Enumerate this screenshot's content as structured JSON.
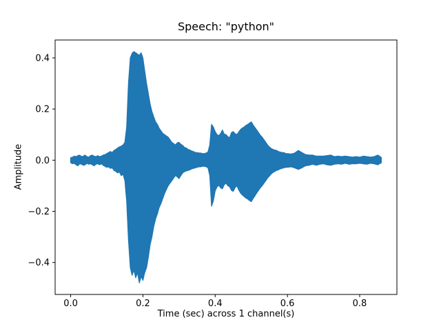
{
  "chart_data": {
    "type": "line",
    "subtype": "audio-waveform-envelope",
    "title": "Speech: \"python\"",
    "xlabel": "Time (sec) across 1 channel(s)",
    "ylabel": "Amplitude",
    "line_color": "#1f77b4",
    "xlim": [
      -0.043,
      0.903
    ],
    "ylim": [
      -0.525,
      0.47
    ],
    "xticks": [
      0.0,
      0.2,
      0.4,
      0.6,
      0.8
    ],
    "xtick_labels": [
      "0.0",
      "0.2",
      "0.4",
      "0.6",
      "0.8"
    ],
    "yticks": [
      -0.4,
      -0.2,
      0.0,
      0.2,
      0.4
    ],
    "ytick_labels": [
      "−0.4",
      "−0.2",
      "0.0",
      "0.2",
      "0.4"
    ],
    "grid": false,
    "legend": "none",
    "peak_amplitude": 0.42,
    "min_amplitude": -0.48,
    "duration_sec": 0.86,
    "envelope": [
      [
        0.0,
        -0.01,
        0.01
      ],
      [
        0.005,
        -0.014,
        0.012
      ],
      [
        0.01,
        -0.012,
        0.016
      ],
      [
        0.015,
        -0.018,
        0.014
      ],
      [
        0.02,
        -0.022,
        0.018
      ],
      [
        0.025,
        -0.014,
        0.02
      ],
      [
        0.03,
        -0.016,
        0.014
      ],
      [
        0.035,
        -0.02,
        0.016
      ],
      [
        0.04,
        -0.018,
        0.02
      ],
      [
        0.045,
        -0.012,
        0.014
      ],
      [
        0.05,
        -0.016,
        0.012
      ],
      [
        0.055,
        -0.014,
        0.018
      ],
      [
        0.06,
        -0.018,
        0.02
      ],
      [
        0.065,
        -0.022,
        0.016
      ],
      [
        0.07,
        -0.016,
        0.014
      ],
      [
        0.075,
        -0.014,
        0.018
      ],
      [
        0.08,
        -0.018,
        0.014
      ],
      [
        0.085,
        -0.014,
        0.016
      ],
      [
        0.09,
        -0.02,
        0.02
      ],
      [
        0.095,
        -0.024,
        0.022
      ],
      [
        0.1,
        -0.028,
        0.026
      ],
      [
        0.105,
        -0.026,
        0.03
      ],
      [
        0.11,
        -0.032,
        0.034
      ],
      [
        0.115,
        -0.03,
        0.03
      ],
      [
        0.12,
        -0.04,
        0.038
      ],
      [
        0.125,
        -0.044,
        0.042
      ],
      [
        0.13,
        -0.05,
        0.048
      ],
      [
        0.135,
        -0.046,
        0.052
      ],
      [
        0.14,
        -0.06,
        0.055
      ],
      [
        0.145,
        -0.055,
        0.06
      ],
      [
        0.15,
        -0.08,
        0.07
      ],
      [
        0.155,
        -0.16,
        0.13
      ],
      [
        0.16,
        -0.31,
        0.3
      ],
      [
        0.165,
        -0.42,
        0.4
      ],
      [
        0.17,
        -0.45,
        0.418
      ],
      [
        0.175,
        -0.43,
        0.425
      ],
      [
        0.18,
        -0.46,
        0.42
      ],
      [
        0.185,
        -0.44,
        0.415
      ],
      [
        0.19,
        -0.48,
        0.41
      ],
      [
        0.195,
        -0.455,
        0.42
      ],
      [
        0.2,
        -0.47,
        0.4
      ],
      [
        0.205,
        -0.44,
        0.35
      ],
      [
        0.21,
        -0.42,
        0.3
      ],
      [
        0.215,
        -0.38,
        0.26
      ],
      [
        0.22,
        -0.33,
        0.22
      ],
      [
        0.225,
        -0.3,
        0.19
      ],
      [
        0.23,
        -0.26,
        0.17
      ],
      [
        0.235,
        -0.23,
        0.15
      ],
      [
        0.24,
        -0.21,
        0.14
      ],
      [
        0.245,
        -0.185,
        0.125
      ],
      [
        0.25,
        -0.17,
        0.115
      ],
      [
        0.255,
        -0.15,
        0.105
      ],
      [
        0.26,
        -0.13,
        0.1
      ],
      [
        0.265,
        -0.115,
        0.095
      ],
      [
        0.27,
        -0.1,
        0.09
      ],
      [
        0.275,
        -0.09,
        0.08
      ],
      [
        0.28,
        -0.08,
        0.07
      ],
      [
        0.285,
        -0.07,
        0.065
      ],
      [
        0.29,
        -0.06,
        0.06
      ],
      [
        0.295,
        -0.065,
        0.068
      ],
      [
        0.3,
        -0.072,
        0.07
      ],
      [
        0.305,
        -0.06,
        0.062
      ],
      [
        0.31,
        -0.05,
        0.058
      ],
      [
        0.315,
        -0.045,
        0.05
      ],
      [
        0.32,
        -0.042,
        0.048
      ],
      [
        0.325,
        -0.04,
        0.042
      ],
      [
        0.33,
        -0.038,
        0.04
      ],
      [
        0.335,
        -0.034,
        0.036
      ],
      [
        0.34,
        -0.032,
        0.034
      ],
      [
        0.345,
        -0.03,
        0.03
      ],
      [
        0.35,
        -0.028,
        0.03
      ],
      [
        0.355,
        -0.026,
        0.028
      ],
      [
        0.36,
        -0.026,
        0.028
      ],
      [
        0.365,
        -0.024,
        0.026
      ],
      [
        0.37,
        -0.024,
        0.026
      ],
      [
        0.375,
        -0.026,
        0.028
      ],
      [
        0.38,
        -0.03,
        0.032
      ],
      [
        0.385,
        -0.06,
        0.06
      ],
      [
        0.39,
        -0.18,
        0.14
      ],
      [
        0.395,
        -0.16,
        0.13
      ],
      [
        0.4,
        -0.12,
        0.112
      ],
      [
        0.405,
        -0.105,
        0.1
      ],
      [
        0.41,
        -0.098,
        0.096
      ],
      [
        0.415,
        -0.108,
        0.104
      ],
      [
        0.42,
        -0.112,
        0.118
      ],
      [
        0.425,
        -0.096,
        0.102
      ],
      [
        0.43,
        -0.09,
        0.1
      ],
      [
        0.435,
        -0.1,
        0.092
      ],
      [
        0.44,
        -0.104,
        0.088
      ],
      [
        0.445,
        -0.118,
        0.108
      ],
      [
        0.45,
        -0.122,
        0.112
      ],
      [
        0.455,
        -0.108,
        0.104
      ],
      [
        0.46,
        -0.1,
        0.1
      ],
      [
        0.465,
        -0.116,
        0.11
      ],
      [
        0.47,
        -0.128,
        0.12
      ],
      [
        0.475,
        -0.136,
        0.126
      ],
      [
        0.48,
        -0.142,
        0.13
      ],
      [
        0.485,
        -0.148,
        0.136
      ],
      [
        0.49,
        -0.152,
        0.14
      ],
      [
        0.495,
        -0.158,
        0.145
      ],
      [
        0.5,
        -0.162,
        0.15
      ],
      [
        0.505,
        -0.15,
        0.138
      ],
      [
        0.51,
        -0.14,
        0.128
      ],
      [
        0.515,
        -0.128,
        0.118
      ],
      [
        0.52,
        -0.118,
        0.108
      ],
      [
        0.525,
        -0.108,
        0.098
      ],
      [
        0.53,
        -0.1,
        0.09
      ],
      [
        0.535,
        -0.09,
        0.08
      ],
      [
        0.54,
        -0.08,
        0.07
      ],
      [
        0.545,
        -0.07,
        0.06
      ],
      [
        0.55,
        -0.062,
        0.052
      ],
      [
        0.555,
        -0.054,
        0.046
      ],
      [
        0.56,
        -0.048,
        0.042
      ],
      [
        0.565,
        -0.044,
        0.04
      ],
      [
        0.57,
        -0.04,
        0.038
      ],
      [
        0.575,
        -0.038,
        0.034
      ],
      [
        0.58,
        -0.034,
        0.032
      ],
      [
        0.585,
        -0.032,
        0.03
      ],
      [
        0.59,
        -0.03,
        0.03
      ],
      [
        0.595,
        -0.028,
        0.026
      ],
      [
        0.6,
        -0.028,
        0.026
      ],
      [
        0.61,
        -0.026,
        0.024
      ],
      [
        0.62,
        -0.03,
        0.028
      ],
      [
        0.63,
        -0.036,
        0.038
      ],
      [
        0.64,
        -0.03,
        0.03
      ],
      [
        0.65,
        -0.022,
        0.022
      ],
      [
        0.66,
        -0.02,
        0.02
      ],
      [
        0.67,
        -0.016,
        0.02
      ],
      [
        0.68,
        -0.02,
        0.016
      ],
      [
        0.69,
        -0.016,
        0.016
      ],
      [
        0.7,
        -0.014,
        0.016
      ],
      [
        0.71,
        -0.018,
        0.018
      ],
      [
        0.72,
        -0.02,
        0.02
      ],
      [
        0.73,
        -0.016,
        0.014
      ],
      [
        0.74,
        -0.014,
        0.016
      ],
      [
        0.75,
        -0.016,
        0.014
      ],
      [
        0.76,
        -0.012,
        0.016
      ],
      [
        0.77,
        -0.016,
        0.014
      ],
      [
        0.78,
        -0.014,
        0.012
      ],
      [
        0.79,
        -0.014,
        0.014
      ],
      [
        0.8,
        -0.012,
        0.012
      ],
      [
        0.81,
        -0.014,
        0.016
      ],
      [
        0.82,
        -0.016,
        0.014
      ],
      [
        0.83,
        -0.012,
        0.012
      ],
      [
        0.84,
        -0.014,
        0.014
      ],
      [
        0.85,
        -0.018,
        0.02
      ],
      [
        0.855,
        -0.014,
        0.016
      ],
      [
        0.86,
        -0.01,
        0.01
      ]
    ]
  }
}
